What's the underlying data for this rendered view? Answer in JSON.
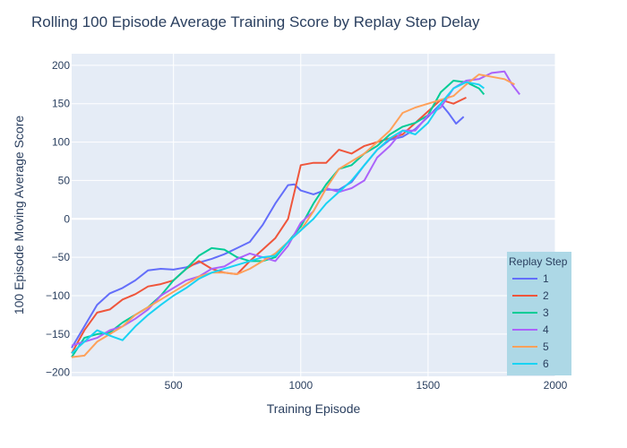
{
  "chart_data": {
    "type": "line",
    "title": "Rolling 100 Episode Average Training Score by Replay Step Delay",
    "xlabel": "Training Episode",
    "ylabel": "100 Episode Moving Average Score",
    "xlim": [
      100,
      2000
    ],
    "ylim": [
      -205,
      215
    ],
    "x_ticks": [
      500,
      1000,
      1500,
      2000
    ],
    "y_ticks": [
      -200,
      -150,
      -100,
      -50,
      0,
      50,
      100,
      150,
      200
    ],
    "grid": true,
    "legend": {
      "title": "Replay Step",
      "placement": "bottom-right"
    },
    "series": [
      {
        "name": "1",
        "color": "#636efa",
        "x": [
          100,
          150,
          200,
          250,
          300,
          350,
          400,
          450,
          500,
          550,
          600,
          650,
          700,
          750,
          800,
          850,
          900,
          950,
          975,
          1000,
          1050,
          1100,
          1150,
          1200,
          1250,
          1300,
          1350,
          1400,
          1450,
          1500,
          1550,
          1580,
          1610,
          1640
        ],
        "values": [
          -168,
          -140,
          -112,
          -97,
          -90,
          -80,
          -67,
          -65,
          -66,
          -63,
          -57,
          -52,
          -46,
          -38,
          -30,
          -8,
          20,
          44,
          45,
          37,
          32,
          38,
          38,
          48,
          70,
          90,
          103,
          107,
          117,
          133,
          150,
          138,
          124,
          133
        ]
      },
      {
        "name": "2",
        "color": "#ef553b",
        "x": [
          100,
          150,
          200,
          250,
          300,
          350,
          400,
          450,
          500,
          550,
          600,
          650,
          700,
          750,
          800,
          850,
          900,
          950,
          1000,
          1050,
          1100,
          1150,
          1200,
          1250,
          1300,
          1350,
          1400,
          1450,
          1500,
          1550,
          1600,
          1650
        ],
        "values": [
          -175,
          -145,
          -122,
          -118,
          -105,
          -98,
          -88,
          -85,
          -80,
          -65,
          -55,
          -65,
          -70,
          -72,
          -55,
          -40,
          -25,
          0,
          70,
          73,
          73,
          90,
          85,
          95,
          100,
          105,
          110,
          125,
          140,
          155,
          150,
          158
        ]
      },
      {
        "name": "3",
        "color": "#00cc96",
        "x": [
          100,
          150,
          200,
          250,
          300,
          350,
          400,
          450,
          500,
          550,
          600,
          650,
          700,
          750,
          800,
          850,
          900,
          950,
          1000,
          1050,
          1100,
          1150,
          1200,
          1250,
          1300,
          1350,
          1400,
          1450,
          1500,
          1550,
          1600,
          1650,
          1700,
          1720
        ],
        "values": [
          -180,
          -155,
          -150,
          -148,
          -135,
          -125,
          -115,
          -100,
          -80,
          -65,
          -48,
          -38,
          -40,
          -50,
          -55,
          -55,
          -50,
          -30,
          -10,
          20,
          45,
          65,
          70,
          85,
          95,
          110,
          120,
          125,
          135,
          165,
          180,
          178,
          170,
          162
        ]
      },
      {
        "name": "4",
        "color": "#ab63fa",
        "x": [
          100,
          150,
          200,
          250,
          300,
          350,
          400,
          450,
          500,
          550,
          600,
          650,
          700,
          750,
          800,
          850,
          900,
          950,
          1000,
          1050,
          1100,
          1150,
          1200,
          1250,
          1300,
          1350,
          1400,
          1450,
          1500,
          1550,
          1600,
          1650,
          1700,
          1750,
          1800,
          1830,
          1860
        ],
        "values": [
          -165,
          -160,
          -155,
          -145,
          -140,
          -130,
          -118,
          -100,
          -90,
          -80,
          -75,
          -65,
          -62,
          -52,
          -45,
          -50,
          -55,
          -35,
          -5,
          10,
          40,
          35,
          40,
          50,
          80,
          95,
          115,
          115,
          135,
          145,
          170,
          180,
          182,
          190,
          192,
          175,
          162
        ]
      },
      {
        "name": "5",
        "color": "#ffa15a",
        "x": [
          100,
          150,
          200,
          250,
          300,
          350,
          400,
          450,
          500,
          550,
          600,
          650,
          700,
          750,
          800,
          850,
          900,
          950,
          1000,
          1050,
          1100,
          1150,
          1200,
          1250,
          1300,
          1350,
          1400,
          1450,
          1500,
          1550,
          1600,
          1650,
          1700,
          1750,
          1800,
          1840
        ],
        "values": [
          -180,
          -178,
          -160,
          -150,
          -140,
          -125,
          -115,
          -105,
          -95,
          -85,
          -75,
          -70,
          -70,
          -72,
          -65,
          -55,
          -45,
          -30,
          -15,
          10,
          40,
          65,
          75,
          85,
          100,
          115,
          138,
          145,
          150,
          155,
          160,
          175,
          188,
          185,
          182,
          175
        ]
      },
      {
        "name": "6",
        "color": "#19d3f3",
        "x": [
          100,
          150,
          200,
          250,
          300,
          350,
          400,
          450,
          500,
          550,
          600,
          650,
          700,
          750,
          800,
          850,
          900,
          950,
          1000,
          1050,
          1100,
          1150,
          1200,
          1250,
          1300,
          1350,
          1400,
          1450,
          1500,
          1550,
          1600,
          1650,
          1700,
          1720
        ],
        "values": [
          -175,
          -160,
          -145,
          -152,
          -158,
          -140,
          -125,
          -112,
          -100,
          -90,
          -78,
          -70,
          -65,
          -60,
          -55,
          -50,
          -48,
          -30,
          -15,
          0,
          20,
          35,
          50,
          70,
          90,
          105,
          115,
          110,
          125,
          150,
          170,
          178,
          175,
          170
        ]
      }
    ]
  }
}
